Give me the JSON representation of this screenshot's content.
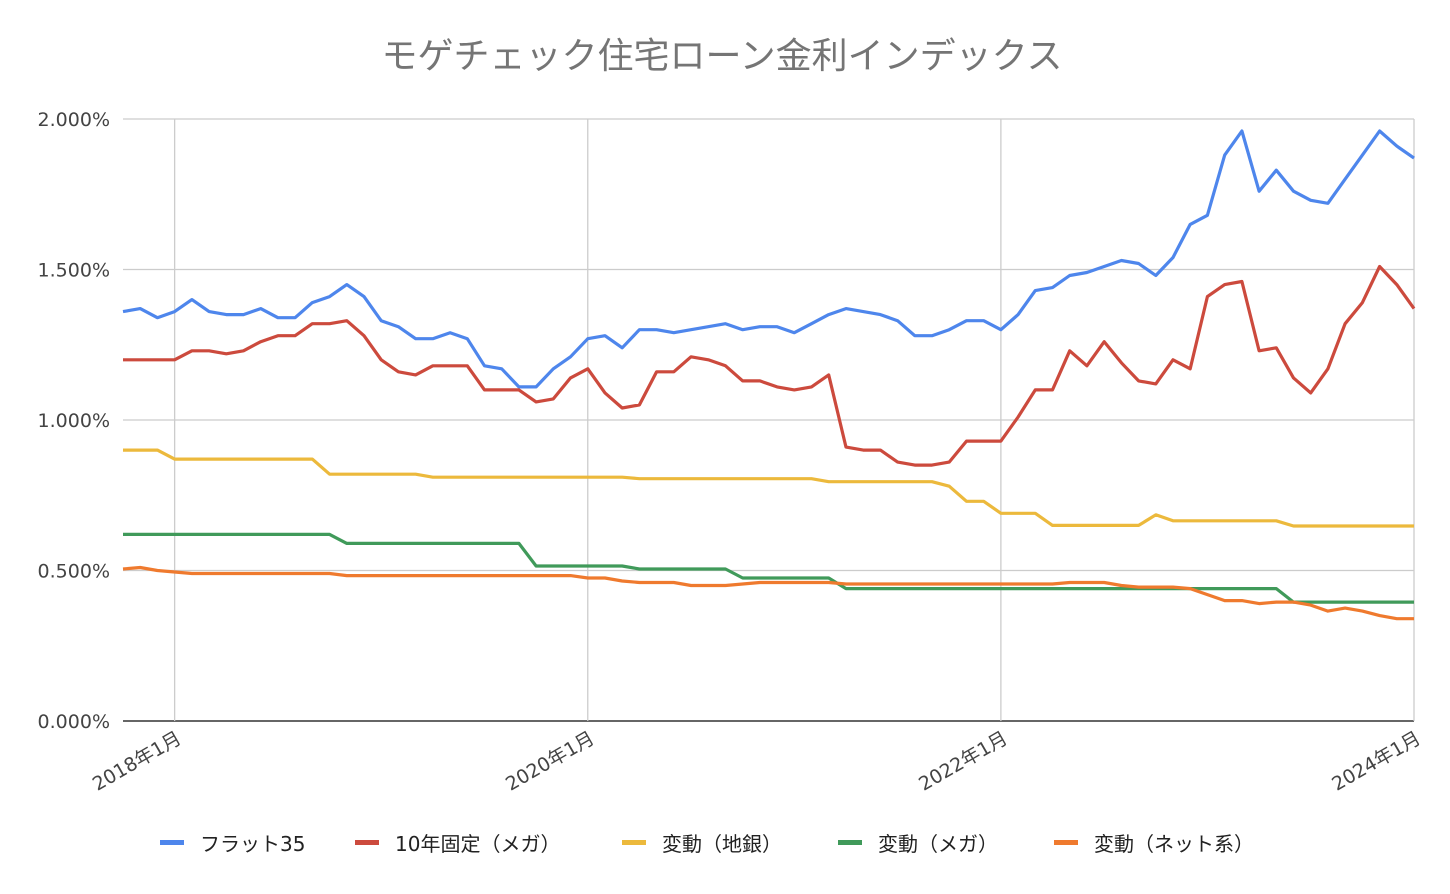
{
  "chart_data": {
    "type": "line",
    "title": "モゲチェック住宅ローン金利インデックス",
    "x_start": "2017年10月",
    "x_end": "2024年1月",
    "x_interval": "1か月",
    "x_ticks": [
      {
        "label": "2018年1月",
        "index": 3
      },
      {
        "label": "2020年1月",
        "index": 27
      },
      {
        "label": "2022年1月",
        "index": 51
      },
      {
        "label": "2024年1月",
        "index": 75
      }
    ],
    "y_ticks": [
      "0.000%",
      "0.500%",
      "1.000%",
      "1.500%",
      "2.000%"
    ],
    "y_tick_values": [
      0,
      0.5,
      1.0,
      1.5,
      2.0
    ],
    "ylim": [
      0,
      2.0
    ],
    "y_unit": "%",
    "grid": true,
    "legend_position": "bottom",
    "series": [
      {
        "name": "フラット35",
        "color": "#4e86ec",
        "values": [
          1.36,
          1.37,
          1.34,
          1.36,
          1.4,
          1.36,
          1.35,
          1.35,
          1.37,
          1.34,
          1.34,
          1.39,
          1.41,
          1.45,
          1.41,
          1.33,
          1.31,
          1.27,
          1.27,
          1.29,
          1.27,
          1.18,
          1.17,
          1.11,
          1.11,
          1.17,
          1.21,
          1.27,
          1.28,
          1.24,
          1.3,
          1.3,
          1.29,
          1.3,
          1.31,
          1.32,
          1.3,
          1.31,
          1.31,
          1.29,
          1.32,
          1.35,
          1.37,
          1.36,
          1.35,
          1.33,
          1.28,
          1.28,
          1.3,
          1.33,
          1.33,
          1.3,
          1.35,
          1.43,
          1.44,
          1.48,
          1.49,
          1.51,
          1.53,
          1.52,
          1.48,
          1.54,
          1.65,
          1.68,
          1.88,
          1.96,
          1.76,
          1.83,
          1.76,
          1.73,
          1.72,
          1.8,
          1.88,
          1.96,
          1.91,
          1.87
        ]
      },
      {
        "name": "10年固定（メガ）",
        "color": "#cc4a3d",
        "values": [
          1.2,
          1.2,
          1.2,
          1.2,
          1.23,
          1.23,
          1.22,
          1.23,
          1.26,
          1.28,
          1.28,
          1.32,
          1.32,
          1.33,
          1.28,
          1.2,
          1.16,
          1.15,
          1.18,
          1.18,
          1.18,
          1.1,
          1.1,
          1.1,
          1.06,
          1.07,
          1.14,
          1.17,
          1.09,
          1.04,
          1.05,
          1.16,
          1.16,
          1.21,
          1.2,
          1.18,
          1.13,
          1.13,
          1.11,
          1.1,
          1.11,
          1.15,
          0.91,
          0.9,
          0.9,
          0.86,
          0.85,
          0.85,
          0.86,
          0.93,
          0.93,
          0.93,
          1.01,
          1.1,
          1.1,
          1.23,
          1.18,
          1.26,
          1.19,
          1.13,
          1.12,
          1.2,
          1.17,
          1.41,
          1.45,
          1.46,
          1.23,
          1.24,
          1.14,
          1.09,
          1.17,
          1.32,
          1.39,
          1.51,
          1.45,
          1.37
        ]
      },
      {
        "name": "変動（地銀）",
        "color": "#ecb93c",
        "values": [
          0.9,
          0.9,
          0.9,
          0.87,
          0.87,
          0.87,
          0.87,
          0.87,
          0.87,
          0.87,
          0.87,
          0.87,
          0.82,
          0.82,
          0.82,
          0.82,
          0.82,
          0.82,
          0.81,
          0.81,
          0.81,
          0.81,
          0.81,
          0.81,
          0.81,
          0.81,
          0.81,
          0.81,
          0.81,
          0.81,
          0.805,
          0.805,
          0.805,
          0.805,
          0.805,
          0.805,
          0.805,
          0.805,
          0.805,
          0.805,
          0.805,
          0.795,
          0.795,
          0.795,
          0.795,
          0.795,
          0.795,
          0.795,
          0.78,
          0.73,
          0.73,
          0.69,
          0.69,
          0.69,
          0.65,
          0.65,
          0.65,
          0.65,
          0.65,
          0.65,
          0.685,
          0.665,
          0.665,
          0.665,
          0.665,
          0.665,
          0.665,
          0.665,
          0.648,
          0.648,
          0.648,
          0.648,
          0.648,
          0.648,
          0.648,
          0.648
        ]
      },
      {
        "name": "変動（メガ）",
        "color": "#409a5a",
        "values": [
          0.62,
          0.62,
          0.62,
          0.62,
          0.62,
          0.62,
          0.62,
          0.62,
          0.62,
          0.62,
          0.62,
          0.62,
          0.62,
          0.59,
          0.59,
          0.59,
          0.59,
          0.59,
          0.59,
          0.59,
          0.59,
          0.59,
          0.59,
          0.59,
          0.515,
          0.515,
          0.515,
          0.515,
          0.515,
          0.515,
          0.505,
          0.505,
          0.505,
          0.505,
          0.505,
          0.505,
          0.475,
          0.475,
          0.475,
          0.475,
          0.475,
          0.475,
          0.44,
          0.44,
          0.44,
          0.44,
          0.44,
          0.44,
          0.44,
          0.44,
          0.44,
          0.44,
          0.44,
          0.44,
          0.44,
          0.44,
          0.44,
          0.44,
          0.44,
          0.44,
          0.44,
          0.44,
          0.44,
          0.44,
          0.44,
          0.44,
          0.44,
          0.44,
          0.395,
          0.395,
          0.395,
          0.395,
          0.395,
          0.395,
          0.395,
          0.395
        ]
      },
      {
        "name": "変動（ネット系）",
        "color": "#ef7a2e",
        "values": [
          0.505,
          0.51,
          0.5,
          0.495,
          0.49,
          0.49,
          0.49,
          0.49,
          0.49,
          0.49,
          0.49,
          0.49,
          0.49,
          0.483,
          0.483,
          0.483,
          0.483,
          0.483,
          0.483,
          0.483,
          0.483,
          0.483,
          0.483,
          0.483,
          0.483,
          0.483,
          0.483,
          0.475,
          0.475,
          0.465,
          0.46,
          0.46,
          0.46,
          0.45,
          0.45,
          0.45,
          0.455,
          0.46,
          0.46,
          0.46,
          0.46,
          0.46,
          0.455,
          0.455,
          0.455,
          0.455,
          0.455,
          0.455,
          0.455,
          0.455,
          0.455,
          0.455,
          0.455,
          0.455,
          0.455,
          0.46,
          0.46,
          0.46,
          0.45,
          0.445,
          0.445,
          0.445,
          0.44,
          0.42,
          0.4,
          0.4,
          0.39,
          0.395,
          0.395,
          0.385,
          0.365,
          0.375,
          0.365,
          0.35,
          0.34,
          0.34
        ]
      }
    ]
  }
}
